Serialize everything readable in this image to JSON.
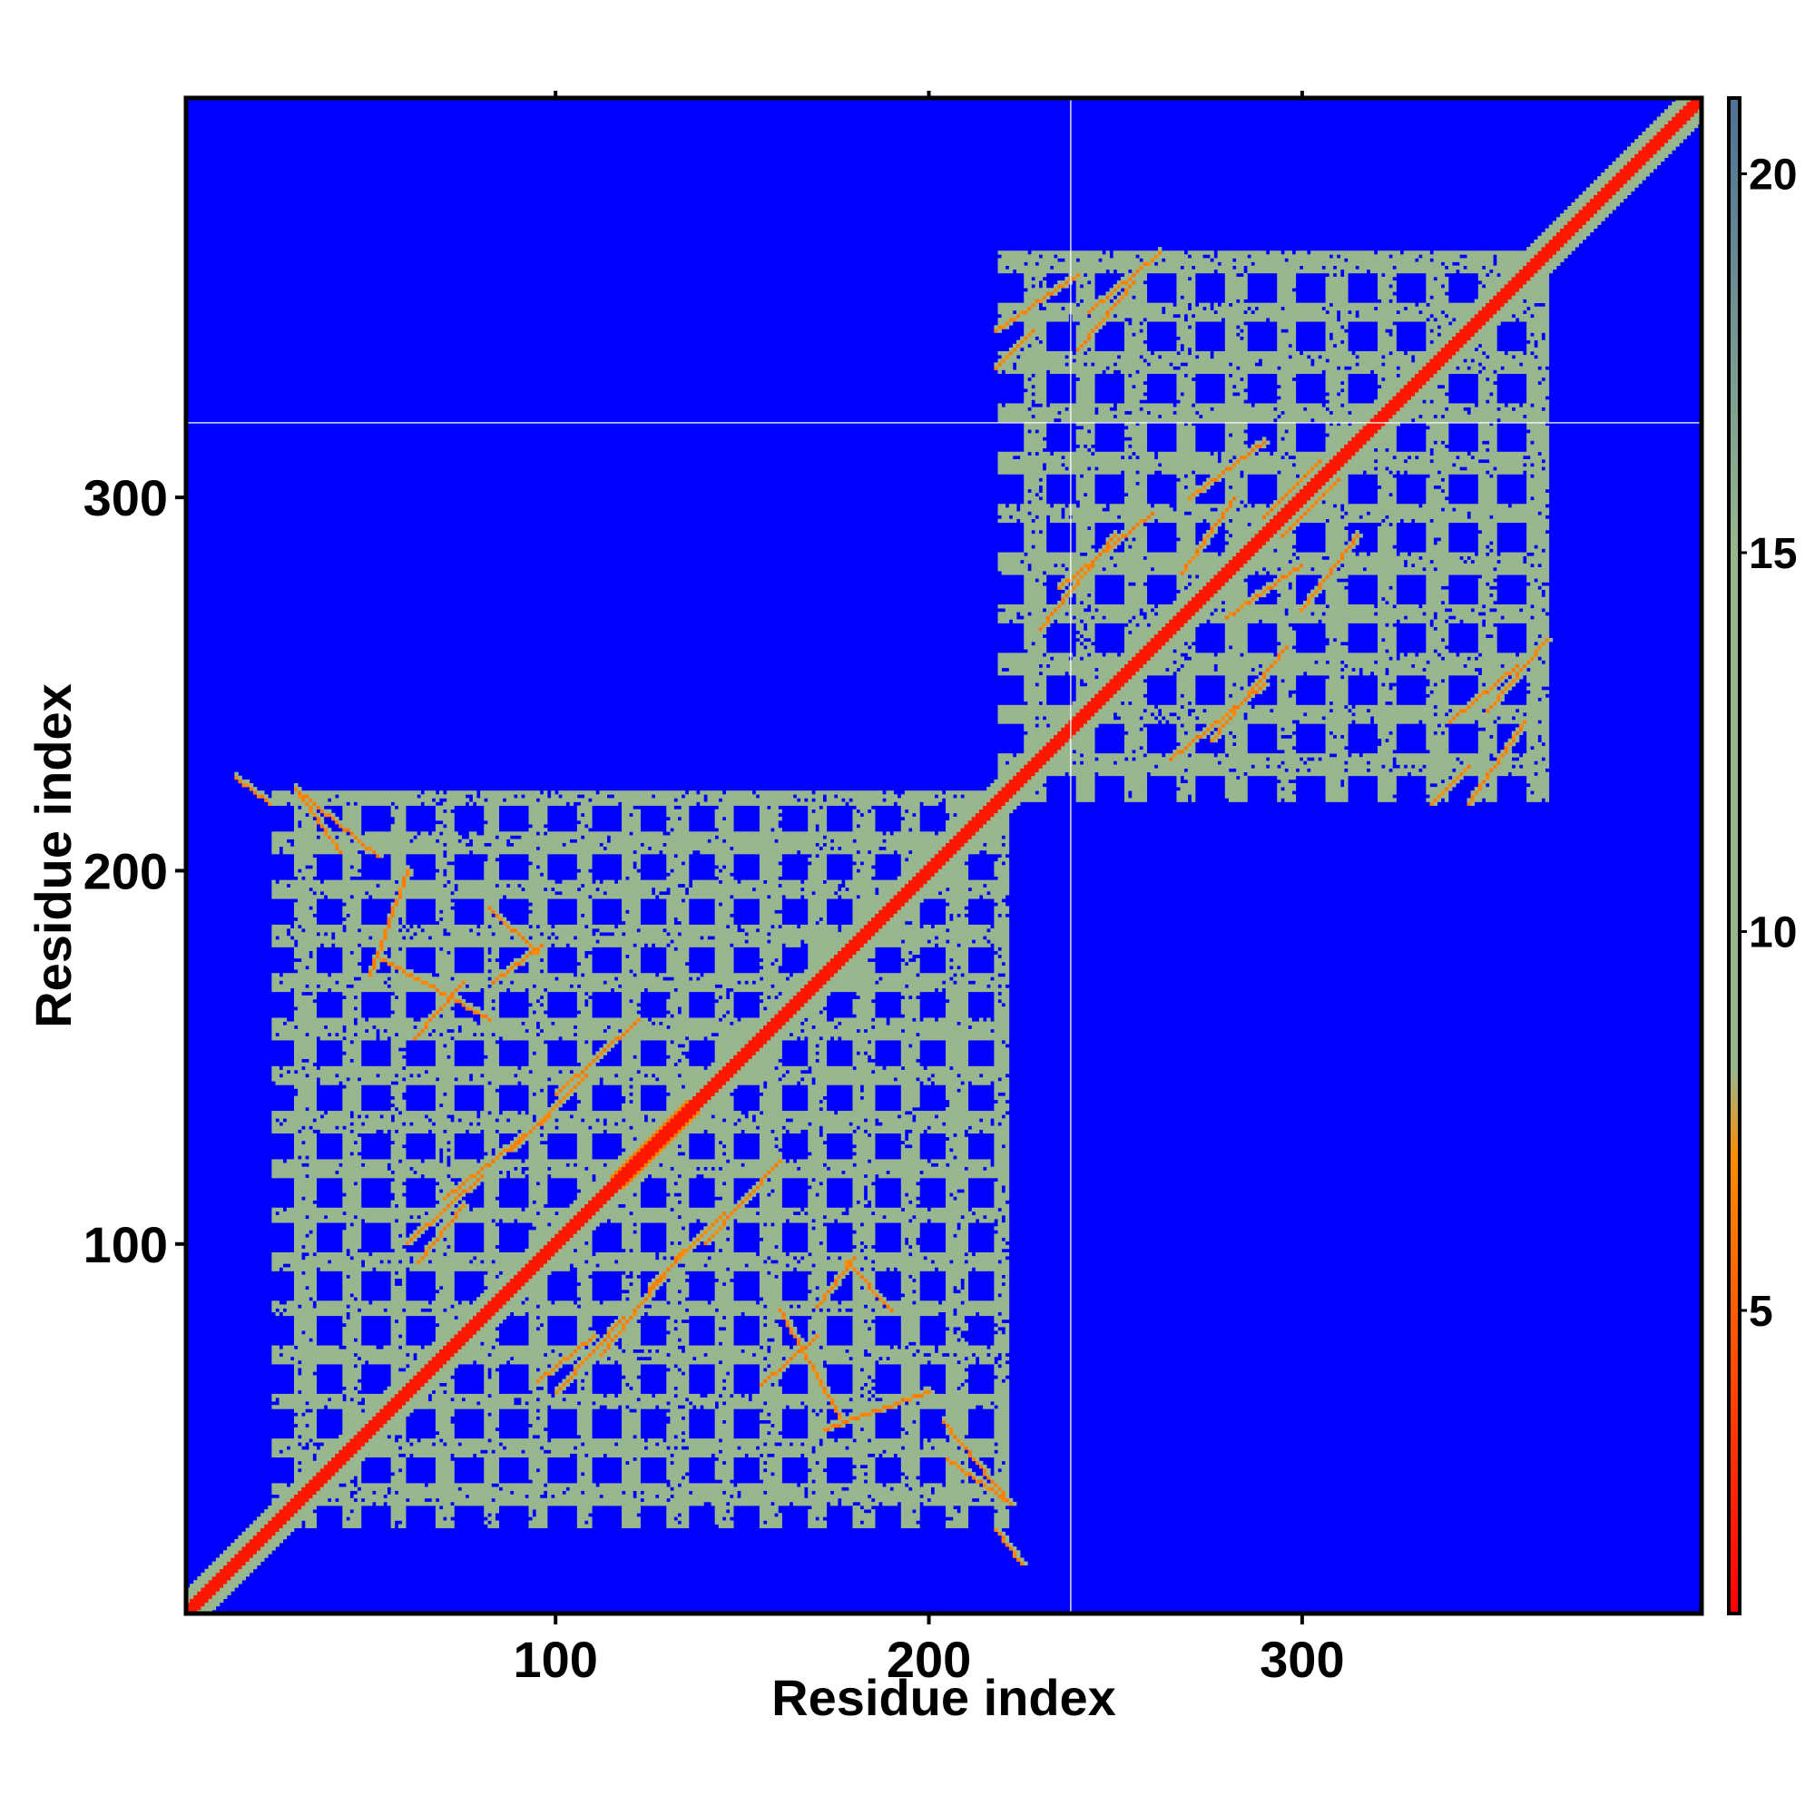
{
  "chart_data": {
    "type": "heatmap",
    "title": "",
    "xlabel": "Residue index",
    "ylabel": "Residue index",
    "xlim": [
      1,
      407
    ],
    "ylim": [
      1,
      407
    ],
    "x_ticks": [
      100,
      200,
      300
    ],
    "y_ticks": [
      100,
      200,
      300
    ],
    "colorbar": {
      "min": 1,
      "max": 21,
      "ticks": [
        5,
        10,
        15,
        20
      ],
      "colors": [
        "#ff0000",
        "#ff8c00",
        "#98b78e",
        "#4e7196"
      ]
    },
    "background_color": "#0000ff",
    "grid": false,
    "domain_boundaries": {
      "x": 238,
      "y": 320
    },
    "symmetric": true,
    "structure": {
      "diagonal": {
        "from": 1,
        "to": 407,
        "value": 2
      },
      "domains": [
        {
          "start": 20,
          "end": 225,
          "cell_size": 12.5,
          "contact_value": 10,
          "strand_value": 6
        },
        {
          "start": 215,
          "end": 370,
          "cell_size": 13.5,
          "contact_value": 10,
          "strand_value": 6
        }
      ],
      "strands": [
        {
          "x": [
            30,
            52
          ],
          "y": [
            222,
            204
          ]
        },
        {
          "x": [
            52,
            82
          ],
          "y": [
            177,
            160
          ]
        },
        {
          "x": [
            82,
            95
          ],
          "y": [
            190,
            178
          ]
        },
        {
          "x": [
            60,
            80
          ],
          "y": [
            100,
            118
          ]
        },
        {
          "x": [
            70,
            98
          ],
          "y": [
            112,
            134
          ]
        },
        {
          "x": [
            95,
            110
          ],
          "y": [
            63,
            75
          ]
        },
        {
          "x": [
            115,
            135
          ],
          "y": [
            118,
            138
          ]
        },
        {
          "x": [
            125,
            145
          ],
          "y": [
            88,
            108
          ]
        },
        {
          "x": [
            140,
            160
          ],
          "y": [
            100,
            122
          ]
        },
        {
          "x": [
            155,
            170
          ],
          "y": [
            62,
            75
          ]
        },
        {
          "x": [
            170,
            180
          ],
          "y": [
            83,
            96
          ]
        },
        {
          "x": [
            172,
            200
          ],
          "y": [
            50,
            60
          ]
        },
        {
          "x": [
            205,
            222
          ],
          "y": [
            42,
            30
          ]
        },
        {
          "x": [
            218,
            225
          ],
          "y": [
            23,
            14
          ]
        },
        {
          "x": [
            218,
            240
          ],
          "y": [
            345,
            360
          ]
        },
        {
          "x": [
            243,
            262
          ],
          "y": [
            350,
            366
          ]
        },
        {
          "x": [
            235,
            260
          ],
          "y": [
            276,
            296
          ]
        },
        {
          "x": [
            270,
            290
          ],
          "y": [
            300,
            315
          ]
        },
        {
          "x": [
            280,
            300
          ],
          "y": [
            268,
            282
          ]
        },
        {
          "x": [
            295,
            310
          ],
          "y": [
            290,
            305
          ]
        },
        {
          "x": [
            265,
            290
          ],
          "y": [
            230,
            250
          ]
        },
        {
          "x": [
            335,
            345
          ],
          "y": [
            218,
            228
          ]
        },
        {
          "x": [
            340,
            358
          ],
          "y": [
            240,
            255
          ]
        }
      ]
    }
  }
}
